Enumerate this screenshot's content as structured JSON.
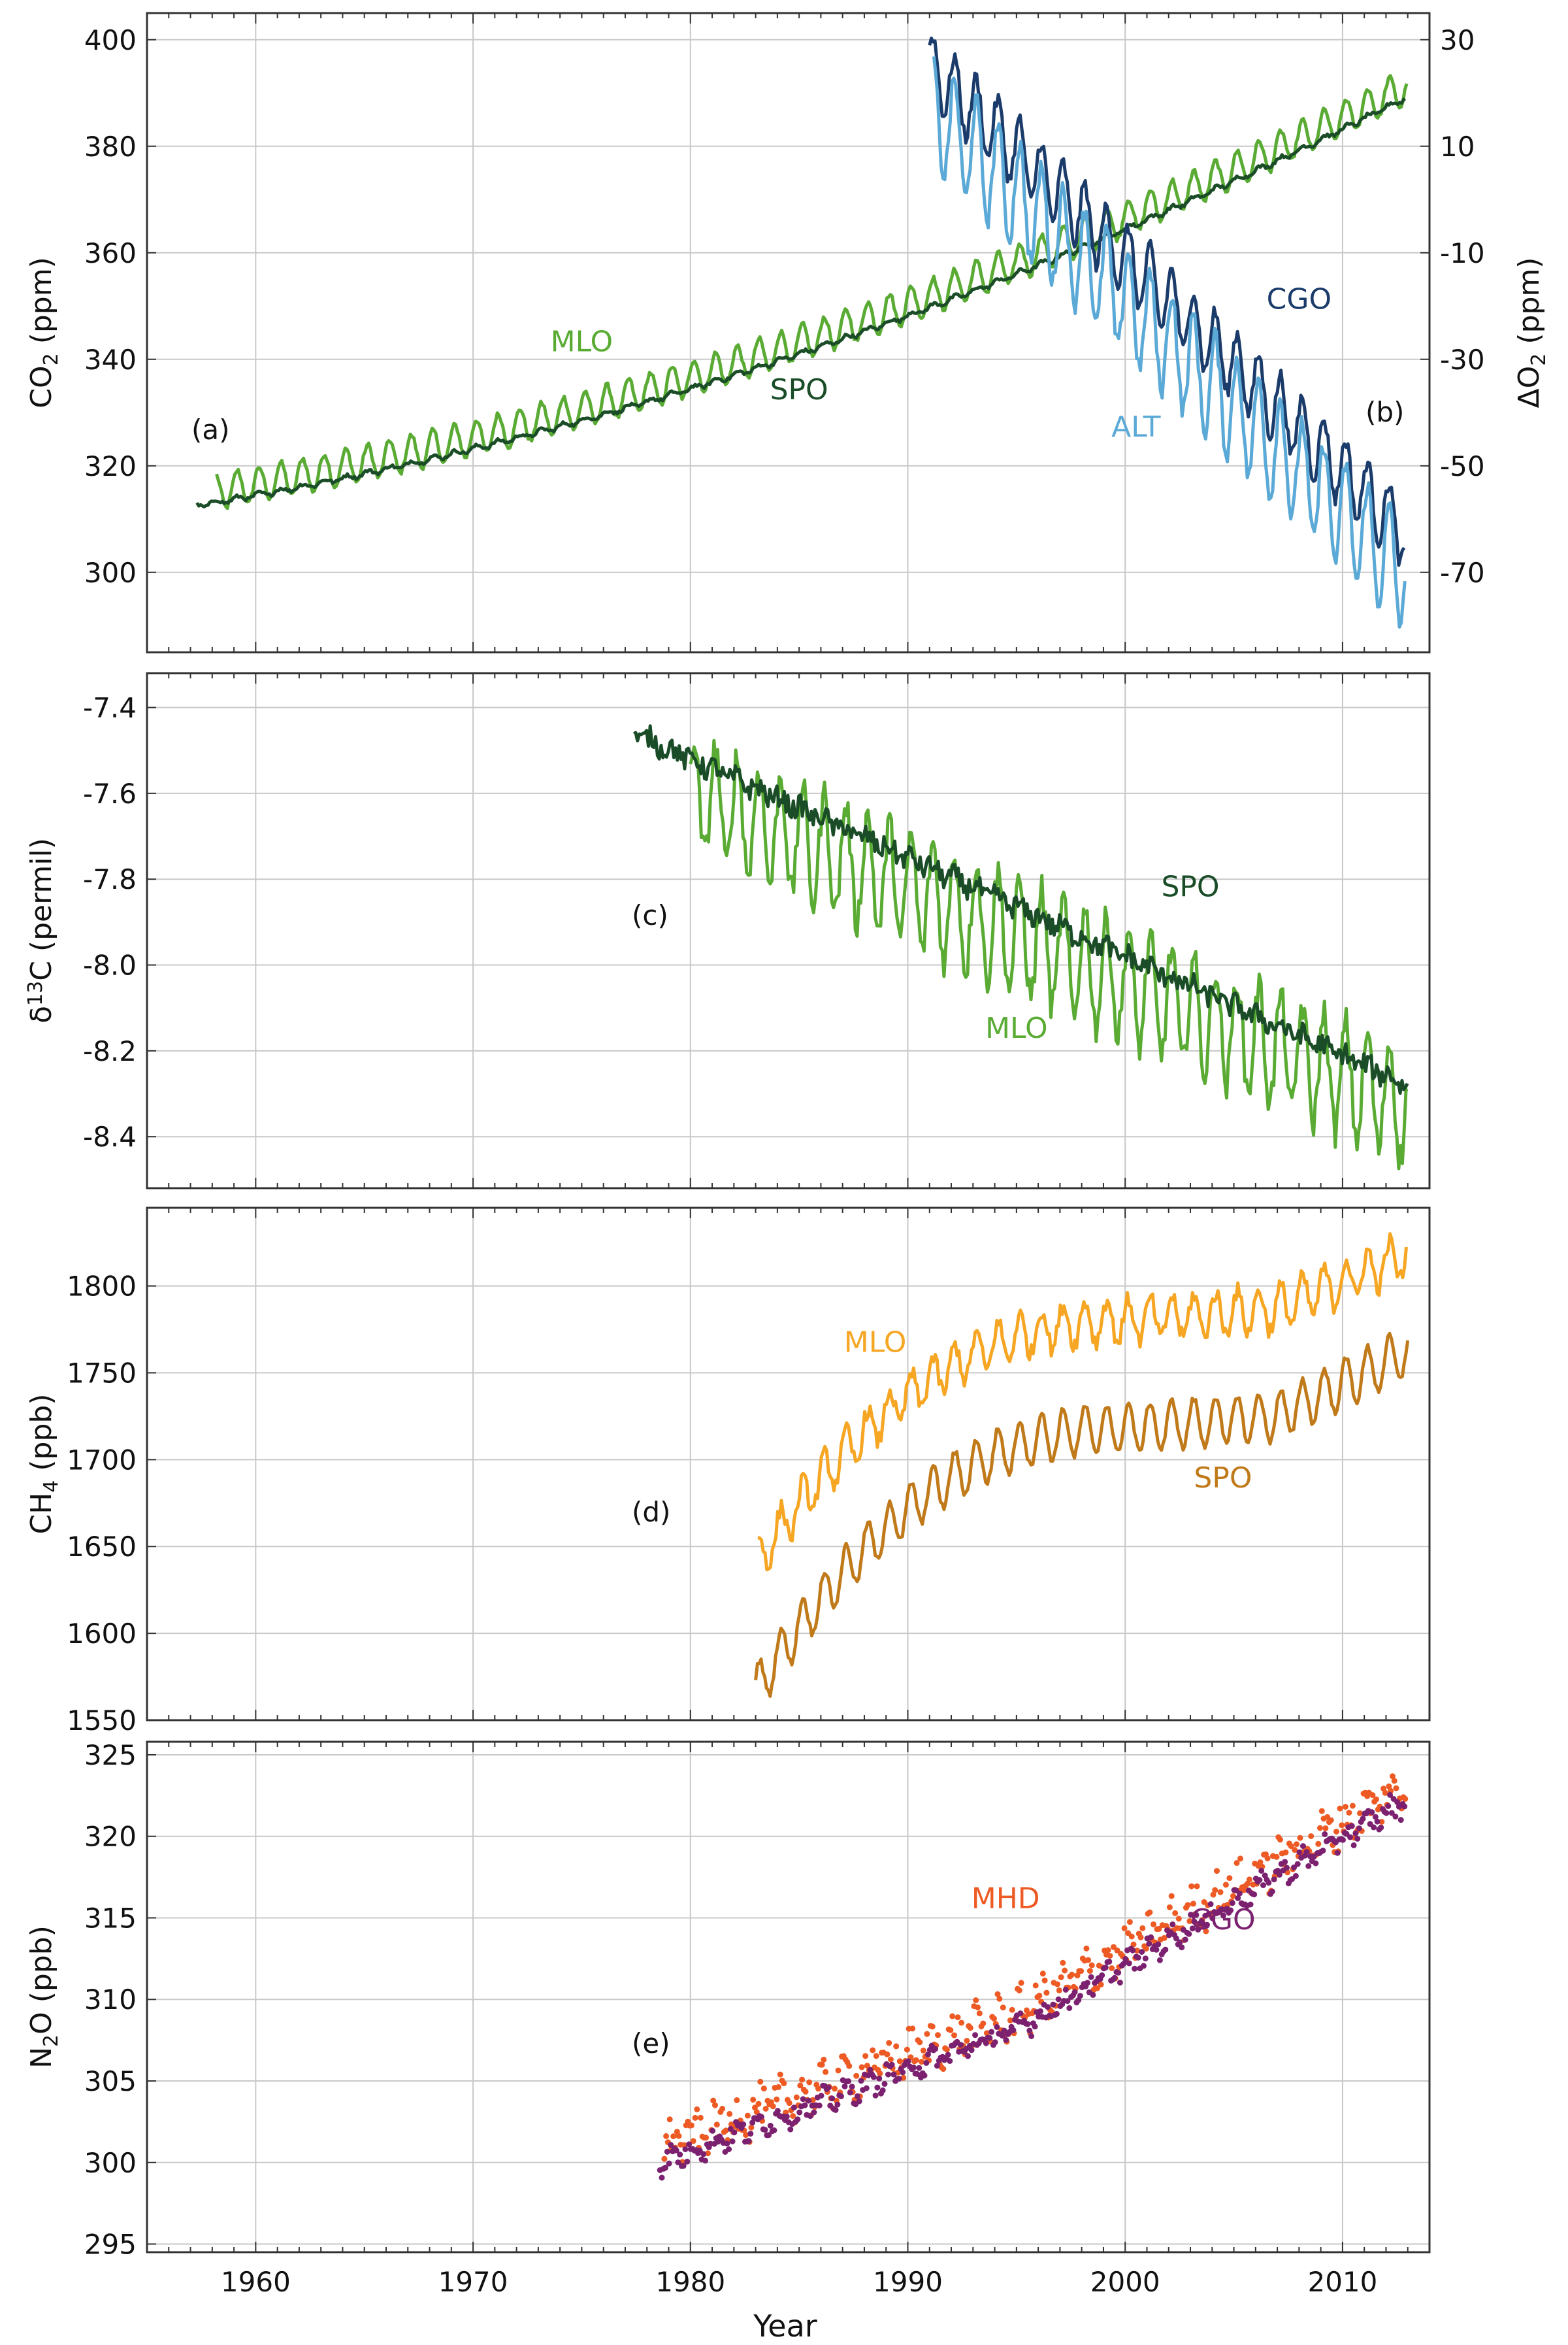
{
  "figure": {
    "xlabel": "Year"
  },
  "chart_data": [
    {
      "type": "line",
      "panel": "a",
      "label": "(a)",
      "label_b": "(b)",
      "ylabel": "CO2 (ppm)",
      "ylabel_main": "CO",
      "ylabel_sub": "2",
      "ylabel_unit": " (ppm)",
      "y2label": "ΔO2 (ppm)",
      "y2label_main": "ΔO",
      "y2label_sub": "2",
      "y2label_unit": " (ppm)",
      "xlim": [
        1955,
        2014
      ],
      "ylim": [
        285,
        405
      ],
      "yticks": [
        300,
        320,
        340,
        360,
        380,
        400
      ],
      "y2lim": [
        -85,
        35
      ],
      "y2ticks": [
        -70,
        -50,
        -30,
        -10,
        10,
        30
      ],
      "xticks": [
        1960,
        1970,
        1980,
        1990,
        2000,
        2010
      ],
      "grid": true,
      "series": [
        {
          "name": "MLO",
          "color": "#5aab33",
          "axis": "left",
          "x_start": 1958.2,
          "x_end": 2013.0,
          "fn": "co2",
          "base": 315.0,
          "slope": 0.7,
          "curve": 0.0125,
          "amp": 3.3,
          "noise": 0.5
        },
        {
          "name": "SPO",
          "color": "#1a4d27",
          "axis": "left",
          "x_start": 1957.3,
          "x_end": 2012.9,
          "fn": "co2",
          "base": 313.0,
          "slope": 0.7,
          "curve": 0.0125,
          "amp": 0.45,
          "noise": 0.3
        },
        {
          "name": "CGO",
          "color": "#1b3c6b",
          "axis": "right",
          "x_start": 1991.0,
          "x_end": 2012.9,
          "fn": "o2",
          "start": 25,
          "rate": -4.0,
          "amp": 6.5,
          "noise": 1.5
        },
        {
          "name": "ALT",
          "color": "#5aa9d6",
          "axis": "right",
          "x_start": 1991.2,
          "x_end": 2012.9,
          "fn": "o2",
          "start": 17,
          "rate": -4.0,
          "amp": 10.0,
          "noise": 2.0
        }
      ],
      "annotations": [
        {
          "text": "MLO",
          "color": "#5aab33",
          "x": 1975.0,
          "y": 341.5
        },
        {
          "text": "SPO",
          "color": "#1a4d27",
          "x": 1985.0,
          "y": 332.5
        },
        {
          "text": "CGO",
          "color": "#1b3c6b",
          "x": 2008.0,
          "y": 349.5
        },
        {
          "text": "ALT",
          "color": "#5aa9d6",
          "x": 2000.5,
          "y": 325.5
        }
      ]
    },
    {
      "type": "line",
      "panel": "c",
      "label": "(c)",
      "ylabel": "δ13C (permil)",
      "ylabel_pre": "δ",
      "ylabel_sup": "13",
      "ylabel_main": "C  (permil)",
      "xlim": [
        1955,
        2014
      ],
      "ylim": [
        -8.52,
        -7.32
      ],
      "yticks": [
        -7.4,
        -7.6,
        -7.8,
        -8.0,
        -8.2,
        -8.4
      ],
      "ytick_labels": [
        "-7.4",
        "-7.6",
        "-7.8",
        "-8.0",
        "-8.2",
        "-8.4"
      ],
      "xticks": [
        1960,
        1970,
        1980,
        1990,
        2000,
        2010
      ],
      "grid": true,
      "series": [
        {
          "name": "MLO",
          "color": "#5aab33",
          "x_start": 1980.0,
          "x_end": 2013.0,
          "fn": "linear",
          "y_start": -7.6,
          "y_end": -8.33,
          "amp": 0.13,
          "noise": 0.04
        },
        {
          "name": "SPO",
          "color": "#1a4d27",
          "x_start": 1977.4,
          "x_end": 2013.0,
          "fn": "linear",
          "y_start": -7.46,
          "y_end": -8.28,
          "amp": 0.01,
          "noise": 0.025
        }
      ],
      "annotations": [
        {
          "text": "SPO",
          "color": "#1a4d27",
          "x": 2003.0,
          "y": -7.84
        },
        {
          "text": "MLO",
          "color": "#5aab33",
          "x": 1995.0,
          "y": -8.17
        }
      ]
    },
    {
      "type": "line",
      "panel": "d",
      "label": "(d)",
      "ylabel": "CH4 (ppb)",
      "ylabel_main": "CH",
      "ylabel_sub": "4",
      "ylabel_unit": " (ppb)",
      "xlim": [
        1955,
        2014
      ],
      "ylim": [
        1550,
        1845
      ],
      "yticks": [
        1550,
        1600,
        1650,
        1700,
        1750,
        1800
      ],
      "xticks": [
        1960,
        1970,
        1980,
        1990,
        2000,
        2010
      ],
      "grid": true,
      "series": [
        {
          "name": "MLO",
          "color": "#f6a623",
          "x_start": 1983.1,
          "x_end": 2013.0,
          "fn": "ch4",
          "start": 1640,
          "plateau": 1780,
          "end": 1818,
          "amp": 12,
          "noise": 5
        },
        {
          "name": "SPO",
          "color": "#c17a1a",
          "x_start": 1983.0,
          "x_end": 2013.0,
          "fn": "ch4",
          "start": 1567,
          "plateau": 1718,
          "end": 1762,
          "amp": 14,
          "noise": 2
        }
      ],
      "annotations": [
        {
          "text": "MLO",
          "color": "#f6a623",
          "x": 1988.5,
          "y": 1762
        },
        {
          "text": "SPO",
          "color": "#c17a1a",
          "x": 2004.5,
          "y": 1684
        }
      ]
    },
    {
      "type": "scatter",
      "panel": "e",
      "label": "(e)",
      "ylabel": "N2O (ppb)",
      "ylabel_main": "N",
      "ylabel_sub": "2",
      "ylabel_unit": "O  (ppb)",
      "xlim": [
        1955,
        2014
      ],
      "ylim": [
        294.5,
        325.8
      ],
      "yticks": [
        295,
        300,
        305,
        310,
        315,
        320,
        325
      ],
      "xticks": [
        1960,
        1970,
        1980,
        1990,
        2000,
        2010
      ],
      "grid": true,
      "series": [
        {
          "name": "MHD",
          "color": "#ee5a24",
          "x_start": 1978.8,
          "x_end": 2012.9,
          "fn": "n2o",
          "offset": 0.9,
          "amp": 0.6,
          "noise": 1.2
        },
        {
          "name": "CGO",
          "color": "#7b2170",
          "x_start": 1978.6,
          "x_end": 2012.9,
          "fn": "n2o",
          "offset": 0.0,
          "amp": 0.4,
          "noise": 0.6
        }
      ],
      "annotations": [
        {
          "text": "MHD",
          "color": "#ee5a24",
          "x": 1994.5,
          "y": 315.6
        },
        {
          "text": "CGO",
          "color": "#7b2170",
          "x": 2004.5,
          "y": 314.3
        }
      ]
    }
  ]
}
